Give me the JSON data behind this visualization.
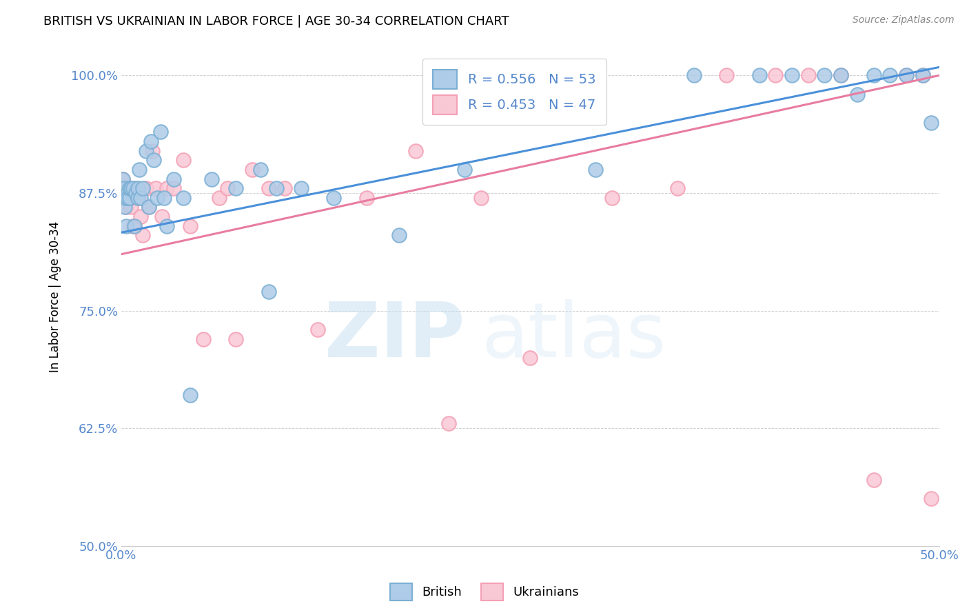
{
  "title": "BRITISH VS UKRAINIAN IN LABOR FORCE | AGE 30-34 CORRELATION CHART",
  "source": "Source: ZipAtlas.com",
  "ylabel": "In Labor Force | Age 30-34",
  "xlim": [
    0.0,
    0.5
  ],
  "ylim": [
    0.5,
    1.03
  ],
  "xticks": [
    0.0,
    0.05,
    0.1,
    0.15,
    0.2,
    0.25,
    0.3,
    0.35,
    0.4,
    0.45,
    0.5
  ],
  "xticklabels": [
    "0.0%",
    "",
    "",
    "",
    "",
    "",
    "",
    "",
    "",
    "",
    "50.0%"
  ],
  "yticks": [
    0.5,
    0.625,
    0.75,
    0.875,
    1.0
  ],
  "yticklabels": [
    "50.0%",
    "62.5%",
    "75.0%",
    "87.5%",
    "100.0%"
  ],
  "british_R": 0.556,
  "british_N": 53,
  "ukrainian_R": 0.453,
  "ukrainian_N": 47,
  "british_color": "#7bafd4",
  "british_fill": "#aecce8",
  "ukrainian_color": "#f4a0b5",
  "ukrainian_fill": "#f9c8d5",
  "line_british_color": "#4a90d9",
  "line_ukrainian_color": "#e87ca0",
  "watermark_left": "ZIP",
  "watermark_right": "atlas",
  "tick_color": "#5588cc",
  "british_x": [
    0.001,
    0.001,
    0.001,
    0.002,
    0.002,
    0.002,
    0.003,
    0.003,
    0.004,
    0.004,
    0.005,
    0.005,
    0.006,
    0.007,
    0.008,
    0.009,
    0.01,
    0.01,
    0.011,
    0.012,
    0.013,
    0.015,
    0.017,
    0.018,
    0.02,
    0.022,
    0.024,
    0.026,
    0.028,
    0.032,
    0.038,
    0.042,
    0.055,
    0.07,
    0.085,
    0.09,
    0.095,
    0.11,
    0.13,
    0.17,
    0.21,
    0.29,
    0.35,
    0.39,
    0.41,
    0.43,
    0.44,
    0.45,
    0.46,
    0.47,
    0.48,
    0.49,
    0.495
  ],
  "british_y": [
    0.87,
    0.88,
    0.89,
    0.86,
    0.875,
    0.88,
    0.84,
    0.87,
    0.875,
    0.87,
    0.87,
    0.88,
    0.88,
    0.88,
    0.84,
    0.875,
    0.87,
    0.88,
    0.9,
    0.87,
    0.88,
    0.92,
    0.86,
    0.93,
    0.91,
    0.87,
    0.94,
    0.87,
    0.84,
    0.89,
    0.87,
    0.66,
    0.89,
    0.88,
    0.9,
    0.77,
    0.88,
    0.88,
    0.87,
    0.83,
    0.9,
    0.9,
    1.0,
    1.0,
    1.0,
    1.0,
    1.0,
    0.98,
    1.0,
    1.0,
    1.0,
    1.0,
    0.95
  ],
  "ukrainian_x": [
    0.001,
    0.001,
    0.002,
    0.002,
    0.003,
    0.003,
    0.004,
    0.005,
    0.006,
    0.007,
    0.008,
    0.009,
    0.01,
    0.012,
    0.013,
    0.015,
    0.017,
    0.019,
    0.021,
    0.025,
    0.028,
    0.032,
    0.038,
    0.042,
    0.05,
    0.06,
    0.065,
    0.07,
    0.08,
    0.09,
    0.1,
    0.12,
    0.15,
    0.18,
    0.2,
    0.22,
    0.25,
    0.3,
    0.34,
    0.37,
    0.4,
    0.42,
    0.44,
    0.46,
    0.48,
    0.49,
    0.495
  ],
  "ukrainian_y": [
    0.88,
    0.89,
    0.87,
    0.88,
    0.86,
    0.88,
    0.87,
    0.87,
    0.86,
    0.84,
    0.84,
    0.88,
    0.87,
    0.85,
    0.83,
    0.88,
    0.86,
    0.92,
    0.88,
    0.85,
    0.88,
    0.88,
    0.91,
    0.84,
    0.72,
    0.87,
    0.88,
    0.72,
    0.9,
    0.88,
    0.88,
    0.73,
    0.87,
    0.92,
    0.63,
    0.87,
    0.7,
    0.87,
    0.88,
    1.0,
    1.0,
    1.0,
    1.0,
    0.57,
    1.0,
    1.0,
    0.55
  ]
}
